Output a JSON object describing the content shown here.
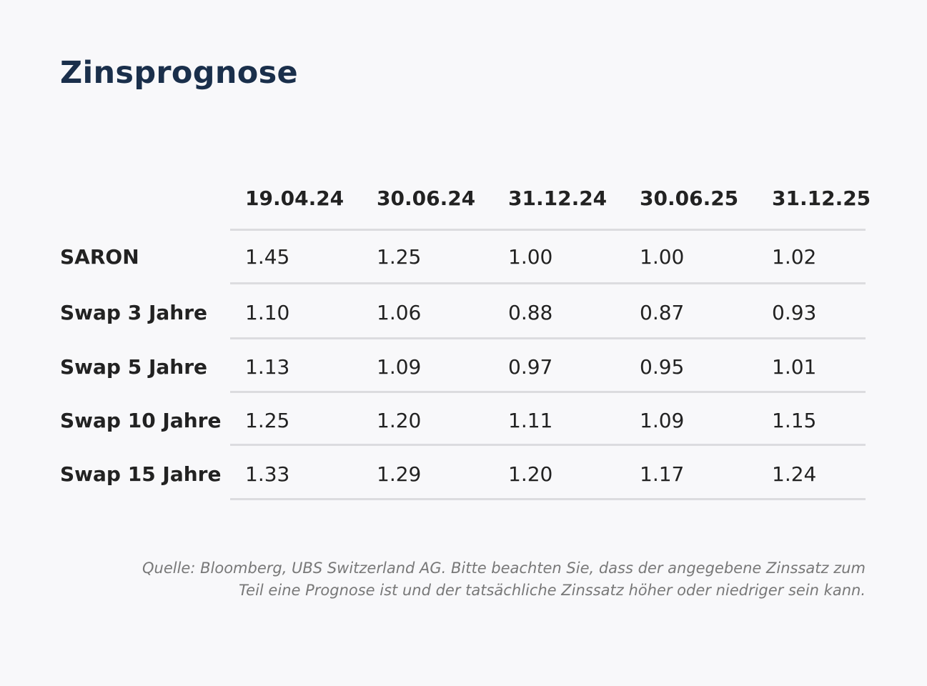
{
  "title": "Zinsprognose",
  "chart_data": {
    "type": "table",
    "columns": [
      "19.04.24",
      "30.06.24",
      "31.12.24",
      "30.06.25",
      "31.12.25"
    ],
    "rows": [
      {
        "label": "SARON",
        "values": [
          "1.45",
          "1.25",
          "1.00",
          "1.00",
          "1.02"
        ]
      },
      {
        "label": "Swap 3 Jahre",
        "values": [
          "1.10",
          "1.06",
          "0.88",
          "0.87",
          "0.93"
        ]
      },
      {
        "label": "Swap 5 Jahre",
        "values": [
          "1.13",
          "1.09",
          "0.97",
          "0.95",
          "1.01"
        ]
      },
      {
        "label": "Swap 10 Jahre",
        "values": [
          "1.25",
          "1.20",
          "1.11",
          "1.09",
          "1.15"
        ]
      },
      {
        "label": "Swap 15 Jahre",
        "values": [
          "1.33",
          "1.29",
          "1.20",
          "1.17",
          "1.24"
        ]
      }
    ]
  },
  "source": {
    "line1": "Quelle: Bloomberg, UBS Switzerland AG. Bitte beachten Sie, dass der angegebene Zinssatz zum",
    "line2": "Teil eine Prognose ist und der tatsächliche Zinssatz höher oder niedriger sein kann."
  }
}
